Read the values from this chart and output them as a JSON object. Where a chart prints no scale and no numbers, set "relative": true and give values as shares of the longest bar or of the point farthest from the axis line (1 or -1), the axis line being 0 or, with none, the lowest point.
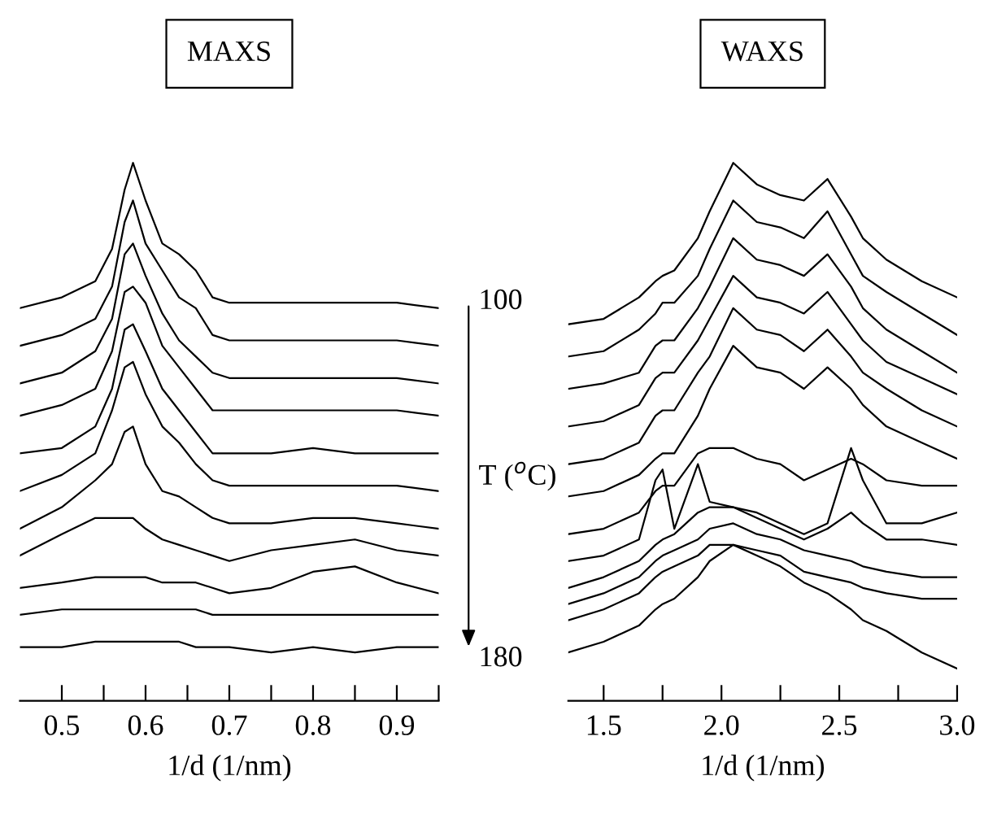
{
  "chart_data": [
    {
      "type": "line",
      "title": "MAXS",
      "xlabel": "1/d (1/nm)",
      "relative": true,
      "tick_labels": "x",
      "x": [
        0.45,
        0.5,
        0.54,
        0.56,
        0.575,
        0.585,
        0.6,
        0.62,
        0.64,
        0.66,
        0.68,
        0.7,
        0.75,
        0.8,
        0.85,
        0.9,
        0.95
      ],
      "xlim": [
        0.45,
        0.95
      ],
      "xticks": [
        {
          "value": 0.5,
          "label": "0.5"
        },
        {
          "value": 0.55,
          "label": null
        },
        {
          "value": 0.6,
          "label": "0.6"
        },
        {
          "value": 0.65,
          "label": null
        },
        {
          "value": 0.7,
          "label": "0.7"
        },
        {
          "value": 0.75,
          "label": null
        },
        {
          "value": 0.8,
          "label": "0.8"
        },
        {
          "value": 0.85,
          "label": null
        },
        {
          "value": 0.9,
          "label": "0.9"
        },
        {
          "value": 0.95,
          "label": null
        }
      ],
      "annotations": [
        "100",
        "T ($^{o}$C)",
        "180"
      ],
      "series": [
        {
          "color": "#000000",
          "values": [
            0.73,
            0.75,
            0.78,
            0.84,
            0.95,
            1,
            0.93,
            0.85,
            0.83,
            0.8,
            0.75,
            0.74,
            0.74,
            0.74,
            0.74,
            0.74,
            0.73
          ]
        },
        {
          "color": "#000000",
          "values": [
            0.66,
            0.68,
            0.71,
            0.77,
            0.89,
            0.93,
            0.85,
            0.8,
            0.75,
            0.73,
            0.68,
            0.67,
            0.67,
            0.67,
            0.67,
            0.67,
            0.66
          ]
        },
        {
          "color": "#000000",
          "values": [
            0.59,
            0.61,
            0.65,
            0.71,
            0.83,
            0.85,
            0.79,
            0.72,
            0.67,
            0.64,
            0.61,
            0.6,
            0.6,
            0.6,
            0.6,
            0.6,
            0.59
          ]
        },
        {
          "color": "#000000",
          "values": [
            0.53,
            0.55,
            0.58,
            0.65,
            0.76,
            0.77,
            0.74,
            0.66,
            0.62,
            0.58,
            0.54,
            0.54,
            0.54,
            0.54,
            0.54,
            0.54,
            0.53
          ]
        },
        {
          "color": "#000000",
          "values": [
            0.46,
            0.47,
            0.51,
            0.58,
            0.69,
            0.7,
            0.65,
            0.58,
            0.54,
            0.5,
            0.46,
            0.46,
            0.46,
            0.47,
            0.46,
            0.46,
            0.46
          ]
        },
        {
          "color": "#000000",
          "values": [
            0.39,
            0.42,
            0.46,
            0.54,
            0.62,
            0.63,
            0.57,
            0.51,
            0.48,
            0.44,
            0.41,
            0.4,
            0.4,
            0.4,
            0.4,
            0.4,
            0.39
          ]
        },
        {
          "color": "#000000",
          "values": [
            0.32,
            0.36,
            0.41,
            0.44,
            0.5,
            0.51,
            0.44,
            0.39,
            0.38,
            0.36,
            0.34,
            0.33,
            0.33,
            0.34,
            0.34,
            0.33,
            0.32
          ]
        },
        {
          "color": "#000000",
          "values": [
            0.27,
            0.31,
            0.34,
            0.34,
            0.34,
            0.34,
            0.32,
            0.3,
            0.29,
            0.28,
            0.27,
            0.26,
            0.28,
            0.29,
            0.3,
            0.28,
            0.27
          ]
        },
        {
          "color": "#000000",
          "values": [
            0.21,
            0.22,
            0.23,
            0.23,
            0.23,
            0.23,
            0.23,
            0.22,
            0.22,
            0.22,
            0.21,
            0.2,
            0.21,
            0.24,
            0.25,
            0.22,
            0.2
          ]
        },
        {
          "color": "#000000",
          "values": [
            0.16,
            0.17,
            0.17,
            0.17,
            0.17,
            0.17,
            0.17,
            0.17,
            0.17,
            0.17,
            0.16,
            0.16,
            0.16,
            0.16,
            0.16,
            0.16,
            0.16
          ]
        },
        {
          "color": "#000000",
          "values": [
            0.1,
            0.1,
            0.11,
            0.11,
            0.11,
            0.11,
            0.11,
            0.11,
            0.11,
            0.1,
            0.1,
            0.1,
            0.09,
            0.1,
            0.09,
            0.1,
            0.1
          ]
        }
      ]
    },
    {
      "type": "line",
      "title": "WAXS",
      "xlabel": "1/d (1/nm)",
      "relative": true,
      "tick_labels": "x",
      "x": [
        1.35,
        1.5,
        1.65,
        1.72,
        1.75,
        1.8,
        1.9,
        1.95,
        2.05,
        2.15,
        2.25,
        2.35,
        2.45,
        2.55,
        2.6,
        2.7,
        2.85,
        3.0
      ],
      "xlim": [
        1.35,
        3.0
      ],
      "xticks": [
        {
          "value": 1.5,
          "label": "1.5"
        },
        {
          "value": 1.75,
          "label": null
        },
        {
          "value": 2.0,
          "label": "2.0"
        },
        {
          "value": 2.25,
          "label": null
        },
        {
          "value": 2.5,
          "label": "2.5"
        },
        {
          "value": 2.75,
          "label": null
        },
        {
          "value": 3.0,
          "label": "3.0"
        }
      ],
      "series": [
        {
          "color": "#000000",
          "values": [
            0.7,
            0.71,
            0.75,
            0.78,
            0.79,
            0.8,
            0.86,
            0.91,
            1,
            0.96,
            0.94,
            0.93,
            0.97,
            0.9,
            0.86,
            0.82,
            0.78,
            0.75
          ]
        },
        {
          "color": "#000000",
          "values": [
            0.64,
            0.65,
            0.69,
            0.72,
            0.74,
            0.74,
            0.79,
            0.84,
            0.93,
            0.89,
            0.88,
            0.86,
            0.91,
            0.83,
            0.79,
            0.76,
            0.72,
            0.68
          ]
        },
        {
          "color": "#000000",
          "values": [
            0.58,
            0.59,
            0.61,
            0.66,
            0.67,
            0.67,
            0.73,
            0.77,
            0.86,
            0.82,
            0.81,
            0.79,
            0.83,
            0.77,
            0.73,
            0.69,
            0.65,
            0.61
          ]
        },
        {
          "color": "#000000",
          "values": [
            0.51,
            0.52,
            0.55,
            0.6,
            0.61,
            0.61,
            0.67,
            0.71,
            0.79,
            0.75,
            0.74,
            0.72,
            0.76,
            0.7,
            0.67,
            0.63,
            0.6,
            0.57
          ]
        },
        {
          "color": "#000000",
          "values": [
            0.44,
            0.45,
            0.48,
            0.53,
            0.54,
            0.54,
            0.61,
            0.64,
            0.73,
            0.69,
            0.68,
            0.65,
            0.69,
            0.64,
            0.61,
            0.58,
            0.54,
            0.51
          ]
        },
        {
          "color": "#000000",
          "values": [
            0.38,
            0.39,
            0.42,
            0.45,
            0.46,
            0.46,
            0.53,
            0.58,
            0.66,
            0.62,
            0.61,
            0.58,
            0.62,
            0.58,
            0.55,
            0.51,
            0.48,
            0.45
          ]
        },
        {
          "color": "#000000",
          "values": [
            0.31,
            0.32,
            0.35,
            0.39,
            0.4,
            0.4,
            0.46,
            0.47,
            0.47,
            0.45,
            0.44,
            0.41,
            0.43,
            0.45,
            0.44,
            0.41,
            0.4,
            0.4
          ]
        },
        {
          "color": "#000000",
          "values": [
            0.26,
            0.27,
            0.3,
            0.41,
            0.43,
            0.32,
            0.44,
            0.37,
            0.36,
            0.35,
            0.33,
            0.31,
            0.33,
            0.47,
            0.41,
            0.33,
            0.33,
            0.35
          ]
        },
        {
          "color": "#000000",
          "values": [
            0.21,
            0.23,
            0.26,
            0.29,
            0.3,
            0.31,
            0.35,
            0.36,
            0.36,
            0.34,
            0.32,
            0.3,
            0.32,
            0.35,
            0.33,
            0.3,
            0.3,
            0.29
          ]
        },
        {
          "color": "#000000",
          "values": [
            0.18,
            0.2,
            0.23,
            0.26,
            0.27,
            0.28,
            0.3,
            0.32,
            0.33,
            0.31,
            0.3,
            0.28,
            0.27,
            0.26,
            0.25,
            0.24,
            0.23,
            0.23
          ]
        },
        {
          "color": "#000000",
          "values": [
            0.15,
            0.17,
            0.2,
            0.23,
            0.24,
            0.25,
            0.27,
            0.29,
            0.29,
            0.28,
            0.27,
            0.24,
            0.23,
            0.22,
            0.21,
            0.2,
            0.19,
            0.19
          ]
        },
        {
          "color": "#000000",
          "values": [
            0.09,
            0.11,
            0.14,
            0.17,
            0.18,
            0.19,
            0.23,
            0.26,
            0.29,
            0.27,
            0.25,
            0.22,
            0.2,
            0.17,
            0.15,
            0.13,
            0.09,
            0.06
          ]
        }
      ]
    }
  ]
}
